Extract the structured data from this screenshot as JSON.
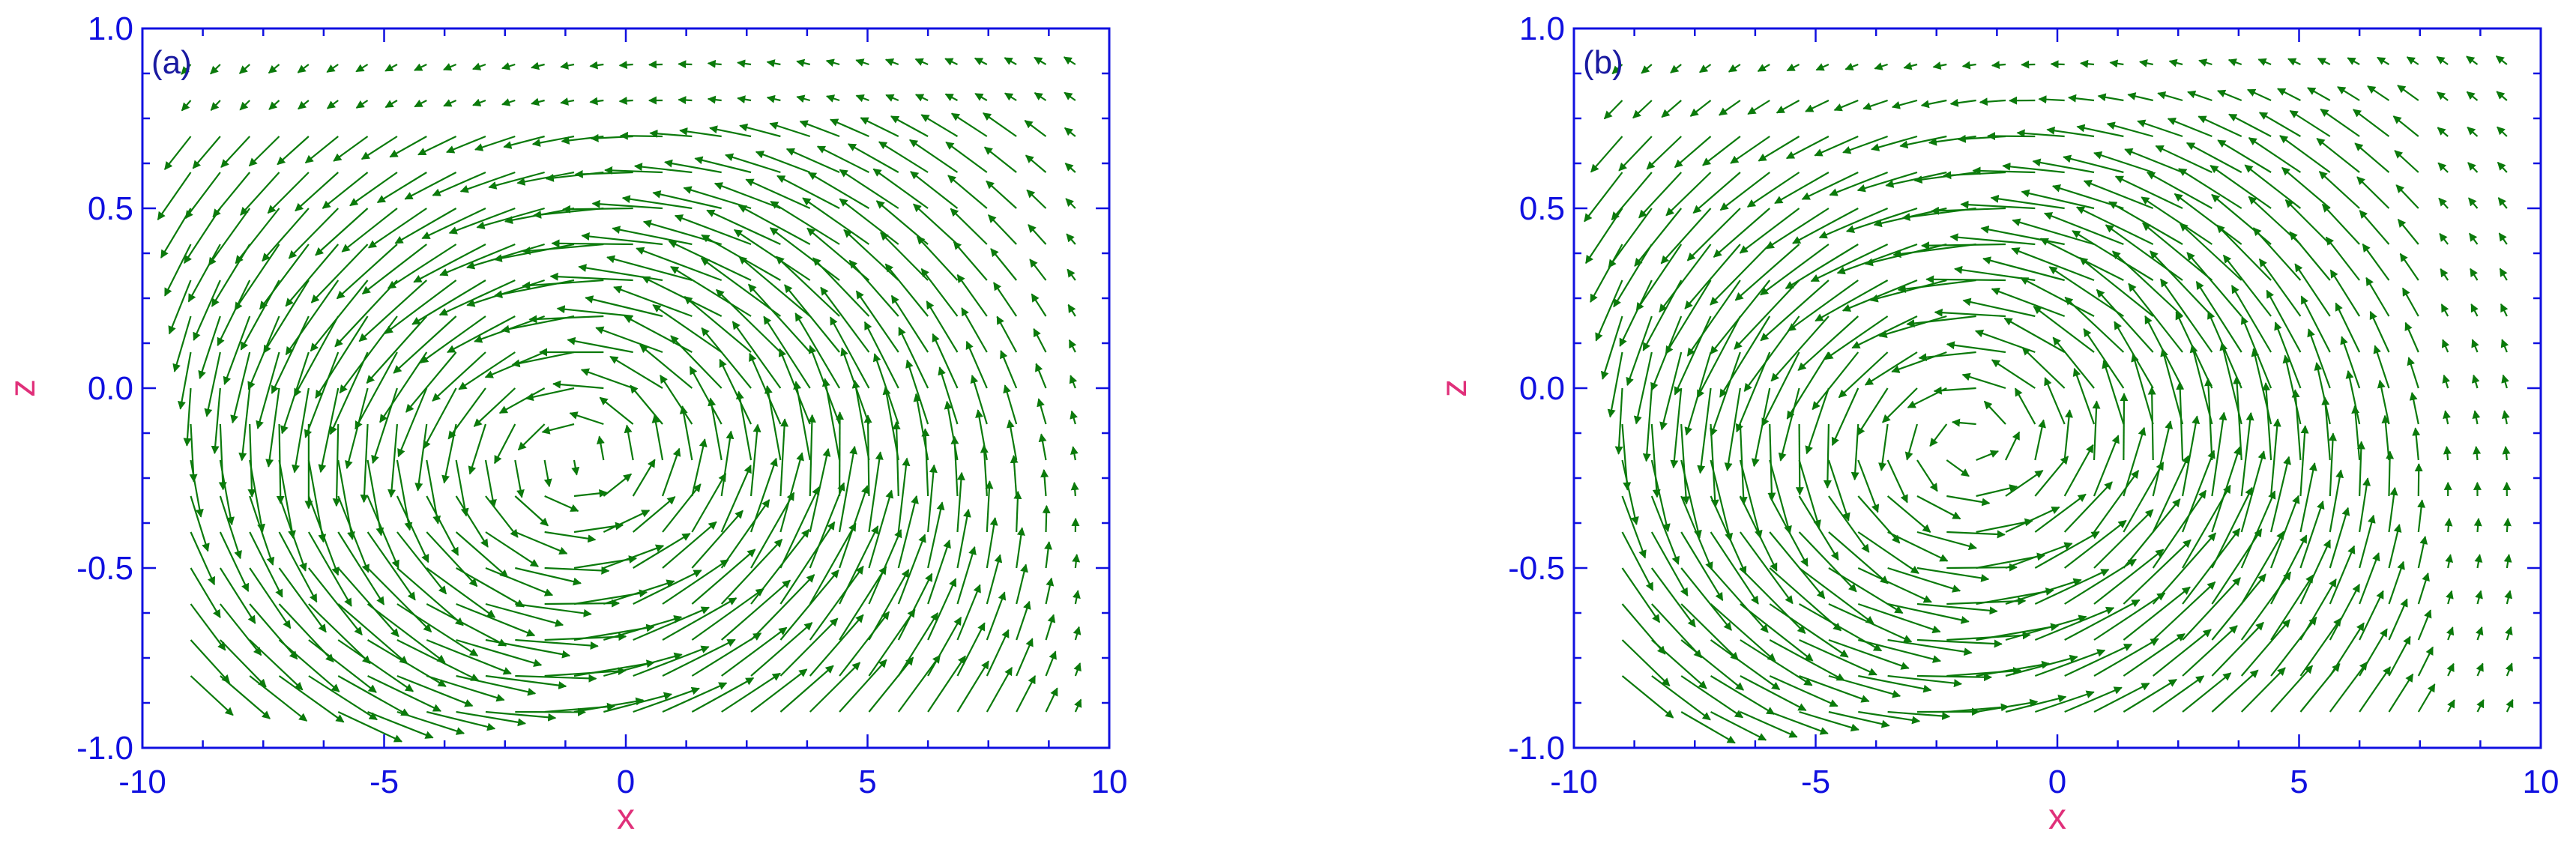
{
  "colors": {
    "axis": "#1010e0",
    "axis_label": "#e0307a",
    "vector": "#0b7a0b",
    "panel_label": "#1a1aa0"
  },
  "chart_data": [
    {
      "type": "quiver",
      "panel_label": "(a)",
      "xlabel": "x",
      "ylabel": "z",
      "xlim": [
        -10,
        10
      ],
      "ylim": [
        -1.0,
        1.0
      ],
      "x_ticks": [
        -10,
        -5,
        0,
        5,
        10
      ],
      "x_tick_labels": [
        "-10",
        "-5",
        "0",
        "5",
        "10"
      ],
      "y_ticks": [
        -1.0,
        -0.5,
        0.0,
        0.5,
        1.0
      ],
      "y_tick_labels": [
        "-1.0",
        "-0.5",
        "0.0",
        "0.5",
        "1.0"
      ],
      "field": {
        "center_x": -1.0,
        "center_z": -0.2,
        "half_width_x": 9.2,
        "half_width_z": 0.92,
        "swirl": 1.0,
        "inflow": 0.18,
        "grid_nx": 31,
        "grid_nz": 19,
        "x_range": [
          -9.0,
          9.3
        ],
        "z_range": [
          -0.9,
          0.9
        ]
      }
    },
    {
      "type": "quiver",
      "panel_label": "(b)",
      "xlabel": "x",
      "ylabel": "z",
      "xlim": [
        -10,
        10
      ],
      "ylim": [
        -1.0,
        1.0
      ],
      "x_ticks": [
        -10,
        -5,
        0,
        5,
        10
      ],
      "x_tick_labels": [
        "-10",
        "-5",
        "0",
        "5",
        "10"
      ],
      "y_ticks": [
        -1.0,
        -0.5,
        0.0,
        0.5,
        1.0
      ],
      "y_tick_labels": [
        "-1.0",
        "-0.5",
        "0.0",
        "0.5",
        "1.0"
      ],
      "field": {
        "center_x": -1.8,
        "center_z": -0.15,
        "half_width_x": 9.0,
        "half_width_z": 0.9,
        "swirl": 1.0,
        "inflow": 0.15,
        "grid_nx": 31,
        "grid_nz": 19,
        "x_range": [
          -9.0,
          9.3
        ],
        "z_range": [
          -0.9,
          0.9
        ]
      }
    }
  ]
}
